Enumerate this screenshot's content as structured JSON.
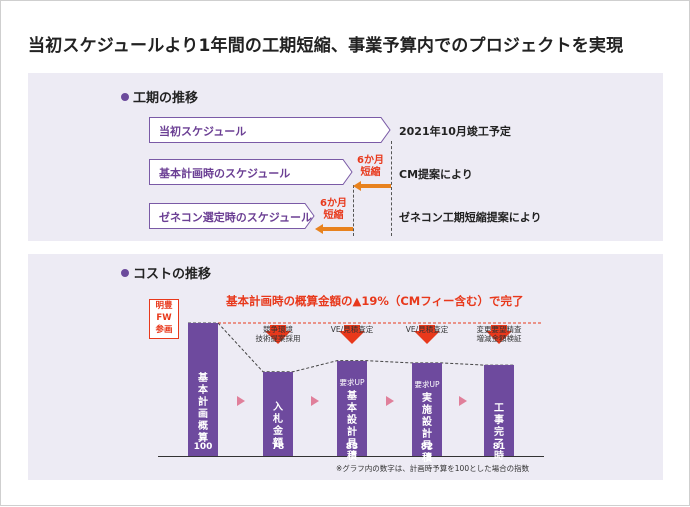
{
  "title": "当初スケジュールより1年間の工期短縮、事業予算内でのプロジェクトを実現",
  "schedule": {
    "heading": "工期の推移",
    "rows": [
      {
        "label": "当初スケジュール",
        "note": "2021年10月竣工予定"
      },
      {
        "label": "基本計画時のスケジュール",
        "note": "CM提案により"
      },
      {
        "label": "ゼネコン選定時のスケジュール",
        "note": "ゼネコン工期短縮提案により"
      }
    ],
    "shortenings": [
      {
        "line1": "6か月",
        "line2": "短縮"
      },
      {
        "line1": "6か月",
        "line2": "短縮"
      }
    ]
  },
  "cost": {
    "heading": "コストの推移",
    "headline": "基本計画時の概算金額の▲19%（CMフィー含む）で完了",
    "fw_tag": [
      "明豊",
      "FW",
      "参画"
    ],
    "bars": [
      {
        "label": "基本計画概算",
        "value": 100
      },
      {
        "label": "入札金額",
        "value": 78
      },
      {
        "label": "基本設計見積",
        "value": 83
      },
      {
        "label": "実施設計見積",
        "value": 82
      },
      {
        "label": "工事完了時",
        "value": 81
      }
    ],
    "annotations": [
      {
        "line1": "競争環境",
        "line2": "技術提案採用"
      },
      {
        "line1": "VE/見積査定",
        "line2": ""
      },
      {
        "line1": "VE/見積査定",
        "line2": ""
      },
      {
        "line1": "変更要望精査",
        "line2": "増減金額検証"
      }
    ],
    "up_label": "要求UP",
    "footnote": "※グラフ内の数字は、計画時予算を100とした場合の指数",
    "colors": {
      "bar": "#6e4a9e",
      "accent": "#e8381b",
      "arrow": "#e07f9a"
    }
  },
  "chart_data": {
    "type": "bar",
    "categories": [
      "基本計画概算",
      "入札金額",
      "基本設計見積",
      "実施設計見積",
      "工事完了時"
    ],
    "values": [
      100,
      78,
      83,
      82,
      81
    ],
    "title": "コストの推移"
  }
}
